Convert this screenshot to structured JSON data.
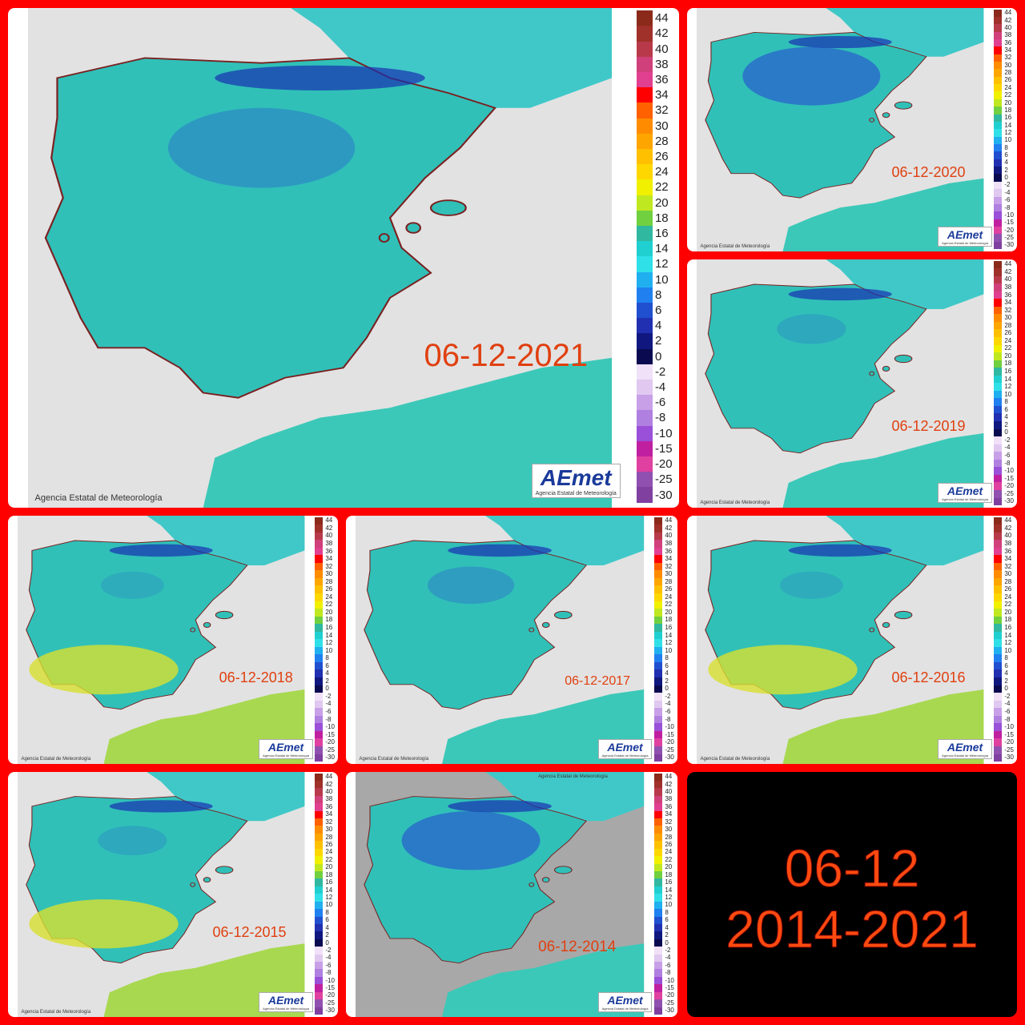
{
  "title": {
    "line1": "06-12",
    "line2": "2014-2021"
  },
  "credit": "Agencia Estatal de Meteorología",
  "logo": {
    "name": "AEmet",
    "subtitle": "Agencia Estatal de Meteorología"
  },
  "legend": {
    "ticks": [
      44,
      42,
      40,
      38,
      36,
      34,
      32,
      30,
      28,
      26,
      24,
      22,
      20,
      18,
      16,
      14,
      12,
      10,
      8,
      6,
      4,
      2,
      0,
      -2,
      -4,
      -6,
      -8,
      -10,
      -15,
      -20,
      -25,
      -30
    ],
    "colors": [
      "#8b2a1a",
      "#a0302a",
      "#b83a4a",
      "#d0407a",
      "#e0408f",
      "#ff0000",
      "#ff6000",
      "#ff8c00",
      "#ffa500",
      "#ffc000",
      "#ffd700",
      "#f0f000",
      "#c0e820",
      "#70d040",
      "#30b8a0",
      "#20d0d0",
      "#30e0e8",
      "#20b0f0",
      "#2080f0",
      "#2050d0",
      "#2030b0",
      "#101880",
      "#0a0a50",
      "#f0e0f8",
      "#e0c8f0",
      "#c8a0e8",
      "#b080e0",
      "#9a50d8",
      "#c020a0",
      "#e040a0",
      "#9050b0",
      "#8040a0"
    ]
  },
  "panels": [
    {
      "date": "06-12-2021"
    },
    {
      "date": "06-12-2020"
    },
    {
      "date": "06-12-2019"
    },
    {
      "date": "06-12-2018"
    },
    {
      "date": "06-12-2017"
    },
    {
      "date": "06-12-2016"
    },
    {
      "date": "06-12-2015"
    },
    {
      "date": "06-12-2014"
    }
  ]
}
